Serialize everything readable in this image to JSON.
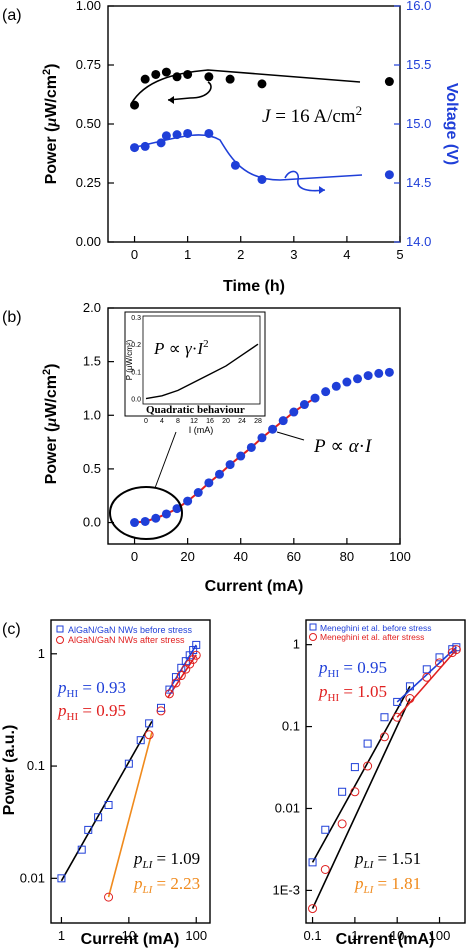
{
  "chart_data": [
    {
      "panel": "(a)",
      "type": "line",
      "xlabel": "Time (h)",
      "ylabel": "Power (μW/cm²)",
      "y2label": "Voltage (V)",
      "xlim": [
        -0.5,
        5
      ],
      "ylim": [
        0,
        1
      ],
      "y2lim": [
        14,
        16
      ],
      "xticks": [
        "0",
        "1",
        "2",
        "3",
        "4",
        "5"
      ],
      "yticks": [
        "0.00",
        "0.25",
        "0.50",
        "0.75",
        "1.00"
      ],
      "y2ticks": [
        "14.0",
        "14.5",
        "15.0",
        "15.5",
        "16.0"
      ],
      "annotation": "J = 16 A/cm²",
      "colors": {
        "power": "#000000",
        "voltage": "#1f3fd8"
      },
      "series": [
        {
          "axis": "left",
          "x": [
            0,
            0.2,
            0.4,
            0.6,
            0.8,
            1.0,
            1.4,
            1.8,
            2.4,
            4.8
          ],
          "values": [
            0.58,
            0.69,
            0.71,
            0.72,
            0.7,
            0.71,
            0.7,
            0.69,
            0.67,
            0.68
          ]
        },
        {
          "axis": "right",
          "x": [
            0,
            0.2,
            0.5,
            0.6,
            0.8,
            1.0,
            1.4,
            1.9,
            2.4,
            4.8
          ],
          "values": [
            14.8,
            14.81,
            14.84,
            14.9,
            14.91,
            14.92,
            14.92,
            14.65,
            14.53,
            14.57
          ]
        }
      ]
    },
    {
      "panel": "(b)",
      "type": "scatter",
      "xlabel": "Current (mA)",
      "ylabel": "Power (μW/cm²)",
      "xlim": [
        -10,
        100
      ],
      "ylim": [
        -0.2,
        2.0
      ],
      "xticks": [
        "0",
        "20",
        "40",
        "60",
        "80",
        "100"
      ],
      "yticks": [
        "0.0",
        "0.5",
        "1.0",
        "1.5",
        "2.0"
      ],
      "annotation": "P ∝ α·I",
      "colors": {
        "points": "#1f3fd8",
        "fit": "#e02020"
      },
      "x": [
        0,
        4,
        8,
        12,
        16,
        20,
        24,
        28,
        32,
        36,
        40,
        44,
        48,
        52,
        56,
        60,
        64,
        68,
        72,
        76,
        80,
        84,
        88,
        92,
        96
      ],
      "values": [
        0.0,
        0.01,
        0.04,
        0.08,
        0.13,
        0.2,
        0.28,
        0.37,
        0.45,
        0.54,
        0.62,
        0.7,
        0.79,
        0.87,
        0.95,
        1.03,
        1.1,
        1.16,
        1.22,
        1.27,
        1.31,
        1.34,
        1.37,
        1.39,
        1.4
      ],
      "inset": {
        "type": "line",
        "xlabel": "I (mA)",
        "ylabel": "P (μW/cm²)",
        "xlim": [
          0,
          28
        ],
        "ylim": [
          -0.02,
          0.3
        ],
        "xticks": [
          "0",
          "4",
          "8",
          "12",
          "16",
          "20",
          "24",
          "28"
        ],
        "yticks": [
          "0.0",
          "0.1",
          "0.2",
          "0.3"
        ],
        "formula": "P ∝ γ·I²",
        "caption": "Quadratic behaviour",
        "x": [
          0,
          4,
          8,
          12,
          16,
          20,
          24,
          28
        ],
        "values": [
          0.0,
          0.01,
          0.03,
          0.06,
          0.09,
          0.12,
          0.16,
          0.2
        ]
      }
    },
    {
      "panel": "(c)",
      "type": "scatter",
      "xlabel": "Current (mA)",
      "ylabel": "Power (a.u.)",
      "xscale": "log",
      "yscale": "log",
      "xlim": [
        0.7,
        160
      ],
      "ylim": [
        0.004,
        2.0
      ],
      "xticks": [
        "1",
        "10",
        "100"
      ],
      "yticks": [
        "0.01",
        "0.1",
        "1"
      ],
      "colors": {
        "before": "#1f3fd8",
        "after": "#e02020",
        "fit_low_before": "#000000",
        "fit_low_after": "#f08a1c"
      },
      "annotations": {
        "p_hi_before": "p_HI = 0.93",
        "p_hi_after": "p_HI = 0.95",
        "p_li_before": "p_LI = 1.09",
        "p_li_after": "p_LI = 2.23"
      },
      "series": [
        {
          "name": "AlGaN/GaN NWs before stress",
          "x": [
            1,
            2,
            2.5,
            3.5,
            5,
            10,
            15,
            20,
            30,
            40,
            50,
            60,
            70,
            80,
            90,
            100
          ],
          "values": [
            0.01,
            0.018,
            0.027,
            0.035,
            0.045,
            0.105,
            0.17,
            0.24,
            0.33,
            0.48,
            0.62,
            0.75,
            0.86,
            0.97,
            1.08,
            1.2
          ]
        },
        {
          "name": "AlGaN/GaN NWs after stress",
          "x": [
            5,
            20,
            30,
            40,
            50,
            60,
            70,
            80,
            90,
            100
          ],
          "values": [
            0.0068,
            0.19,
            0.31,
            0.44,
            0.55,
            0.64,
            0.73,
            0.81,
            0.89,
            0.97
          ]
        }
      ]
    },
    {
      "panel": "(c) right",
      "type": "scatter",
      "xlabel": "Current (mA)",
      "ylabel": "",
      "xscale": "log",
      "yscale": "log",
      "xlim": [
        0.07,
        400
      ],
      "ylim": [
        0.0004,
        2.0
      ],
      "xticks": [
        "0.1",
        "1",
        "10",
        "100"
      ],
      "yticks": [
        "1E-3",
        "0.01",
        "0.1",
        "1"
      ],
      "colors": {
        "before": "#1f3fd8",
        "after": "#e02020",
        "fit": "#000000"
      },
      "annotations": {
        "p_hi_before": "p_HI = 0.95",
        "p_hi_after": "p_HI = 1.05",
        "p_li_before": "p_LI = 1.51",
        "p_li_after": "p_LI = 1.81"
      },
      "series": [
        {
          "name": "Meneghini et al. before stress",
          "x": [
            0.1,
            0.2,
            0.5,
            1,
            2,
            5,
            10,
            20,
            50,
            100,
            200,
            250
          ],
          "values": [
            0.0022,
            0.0055,
            0.016,
            0.032,
            0.062,
            0.13,
            0.2,
            0.31,
            0.5,
            0.7,
            0.88,
            0.93
          ]
        },
        {
          "name": "Meneghini et al. after stress",
          "x": [
            0.1,
            0.2,
            0.5,
            1,
            2,
            5,
            10,
            20,
            50,
            100,
            200,
            250
          ],
          "values": [
            0.0006,
            0.0018,
            0.0065,
            0.016,
            0.033,
            0.075,
            0.13,
            0.22,
            0.4,
            0.6,
            0.8,
            0.87
          ]
        }
      ]
    }
  ],
  "labels": {
    "panel_a": "(a)",
    "panel_b": "(b)",
    "panel_c": "(c)",
    "a_xlabel": "Time (h)",
    "b_xlabel": "Current (mA)",
    "c_xlabel": "Current (mA)",
    "c_ylabel": "Power (a.u.)",
    "legend_c1_before": "AlGaN/GaN NWs before stress",
    "legend_c1_after": "AlGaN/GaN NWs after stress",
    "legend_c2_before": "Meneghini et al. before stress",
    "legend_c2_after": "Meneghini et al. after stress"
  }
}
